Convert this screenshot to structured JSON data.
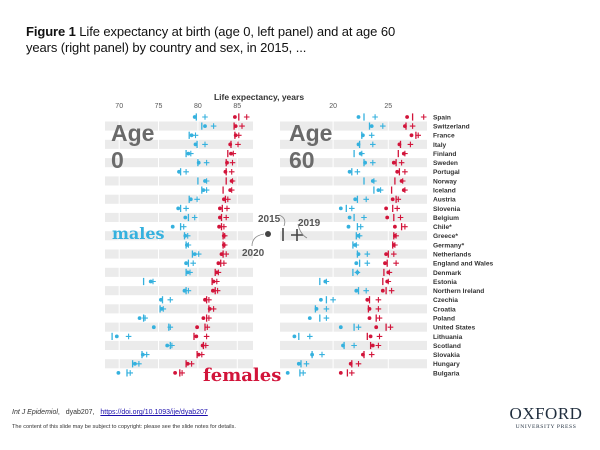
{
  "title": {
    "bold": "Figure 1",
    "text": " Life expectancy at birth (age 0, left panel) and at age 60 years (right panel) by country and sex, in 2015, ..."
  },
  "footer": {
    "journal": "Int J Epidemiol",
    "sep": ",",
    "article_id": "dyab207,",
    "doi_link": "https://doi.org/10.1093/ije/dyab207",
    "copyright": "The content of this slide may be subject to copyright: please see the slide notes for details."
  },
  "publisher": {
    "name": "OXFORD",
    "sub": "UNIVERSITY PRESS"
  },
  "colors": {
    "males": "#35b1de",
    "females": "#d2143a",
    "stripe": "#ebebeb",
    "label": "#333333",
    "age_label": "#6b6b6b"
  },
  "chart_data": {
    "type": "dot",
    "title": "Life expectancy at birth (age 0, left panel) and at age 60 years (right panel) by country and sex, in 2015, 2019 and 2020",
    "xlabel": "Life expectancy, years",
    "grid": true,
    "legend": {
      "y2015": "2015",
      "y2019": "2019",
      "y2020": "2020",
      "placement": "center",
      "marks": {
        "2015": "bar",
        "2019": "plus",
        "2020": "dot"
      }
    },
    "sex_labels": {
      "males": "males",
      "females": "females"
    },
    "countries": [
      "Spain",
      "Switzerland",
      "France",
      "Italy",
      "Finland",
      "Sweden",
      "Portugal",
      "Norway",
      "Iceland",
      "Austria",
      "Slovenia",
      "Belgium",
      "Chile*",
      "Greece*",
      "Germany*",
      "Netherlands",
      "England and Wales",
      "Denmark",
      "Estonia",
      "Northern Ireland",
      "Czechia",
      "Croatia",
      "Poland",
      "United States",
      "Lithuania",
      "Scotland",
      "Slovakia",
      "Hungary",
      "Bulgaria"
    ],
    "panels": [
      {
        "name": "Age 0",
        "label_line1": "Age",
        "label_line2": "0",
        "xticks": [
          70,
          75,
          80,
          85
        ],
        "xtick_labels": [
          "70",
          "75",
          "80",
          "85"
        ],
        "xlim": [
          68.2,
          87.0
        ],
        "males": {
          "y2015": [
            79.8,
            80.5,
            78.9,
            79.9,
            78.5,
            80.0,
            77.8,
            80.0,
            80.5,
            78.9,
            77.8,
            78.8,
            77.8,
            78.3,
            78.5,
            79.3,
            78.8,
            78.5,
            73.1,
            78.5,
            75.5,
            75.2,
            73.1,
            76.3,
            69.1,
            76.5,
            72.9,
            71.7,
            71.0
          ],
          "y2019": [
            80.9,
            82.0,
            79.7,
            80.9,
            79.1,
            81.1,
            78.5,
            81.1,
            81.1,
            79.9,
            78.5,
            79.6,
            78.2,
            78.7,
            78.8,
            80.1,
            79.4,
            79.0,
            74.3,
            78.8,
            76.5,
            75.6,
            73.3,
            76.5,
            71.2,
            76.7,
            73.5,
            72.5,
            71.4
          ],
          "y2020": [
            79.6,
            80.9,
            79.2,
            79.7,
            78.8,
            80.1,
            77.6,
            80.9,
            80.7,
            79.1,
            77.5,
            78.4,
            76.8,
            78.4,
            78.6,
            79.6,
            78.5,
            78.7,
            74.0,
            78.3,
            75.3,
            75.4,
            72.6,
            74.4,
            69.7,
            76.1,
            73.0,
            72.0,
            69.9
          ]
        },
        "females": {
          "y2015": [
            85.2,
            84.6,
            84.7,
            84.2,
            83.8,
            83.6,
            83.6,
            83.6,
            83.2,
            83.5,
            83.1,
            83.0,
            83.0,
            83.2,
            83.2,
            83.2,
            82.9,
            82.2,
            81.8,
            82.2,
            81.1,
            81.4,
            81.1,
            80.9,
            79.5,
            80.7,
            79.9,
            78.5,
            77.7
          ],
          "y2019": [
            86.2,
            85.6,
            85.2,
            85.1,
            84.5,
            84.4,
            84.3,
            84.4,
            84.3,
            83.8,
            83.7,
            83.6,
            83.3,
            83.4,
            83.4,
            83.6,
            83.3,
            82.6,
            82.4,
            82.5,
            81.4,
            82.0,
            81.4,
            81.2,
            81.1,
            81.0,
            80.5,
            79.2,
            78.0
          ],
          "y2020": [
            84.7,
            84.8,
            84.8,
            84.1,
            84.2,
            83.7,
            83.5,
            84.3,
            84.1,
            83.3,
            82.8,
            82.8,
            82.7,
            83.3,
            83.3,
            83.0,
            82.6,
            82.4,
            82.0,
            81.9,
            80.9,
            81.5,
            80.7,
            79.9,
            79.8,
            80.6,
            80.1,
            78.7,
            77.1
          ]
        }
      },
      {
        "name": "Age 60",
        "label_line1": "Age",
        "label_line2": "60",
        "xticks": [
          20,
          25
        ],
        "xtick_labels": [
          "20",
          "25"
        ],
        "xlim": [
          15.2,
          28.5
        ],
        "males": {
          "y2015": [
            22.8,
            23.3,
            22.6,
            22.4,
            21.9,
            22.8,
            21.7,
            22.8,
            23.7,
            22.2,
            21.2,
            21.9,
            22.2,
            22.1,
            21.8,
            22.2,
            22.4,
            21.8,
            18.8,
            22.3,
            19.4,
            18.4,
            18.8,
            21.9,
            16.9,
            21.0,
            18.1,
            17.1,
            17.0
          ],
          "y2019": [
            23.8,
            24.5,
            23.5,
            23.6,
            22.6,
            23.6,
            22.2,
            23.7,
            24.3,
            23.0,
            21.7,
            22.8,
            22.5,
            22.4,
            22.1,
            23.1,
            23.1,
            22.2,
            19.4,
            23.0,
            20.0,
            19.4,
            19.4,
            22.3,
            17.9,
            21.9,
            19.0,
            17.6,
            17.3
          ],
          "y2020": [
            22.3,
            23.5,
            22.7,
            22.3,
            22.5,
            22.9,
            21.5,
            23.6,
            24.1,
            22.0,
            20.7,
            21.5,
            21.4,
            22.3,
            22.0,
            22.3,
            22.1,
            22.2,
            19.3,
            22.1,
            18.9,
            18.5,
            17.9,
            20.7,
            16.5,
            20.9,
            18.1,
            16.9,
            15.9
          ]
        },
        "females": {
          "y2015": [
            27.2,
            26.6,
            27.5,
            26.1,
            25.9,
            25.7,
            26.0,
            25.6,
            25.3,
            25.7,
            25.4,
            25.5,
            26.2,
            25.5,
            25.4,
            25.0,
            24.9,
            24.6,
            24.5,
            24.8,
            23.3,
            23.2,
            23.9,
            24.8,
            23.1,
            23.4,
            22.8,
            21.7,
            21.3
          ],
          "y2019": [
            28.2,
            27.2,
            27.7,
            27.0,
            26.5,
            26.2,
            26.5,
            26.3,
            26.5,
            25.9,
            25.8,
            26.1,
            26.5,
            25.7,
            25.6,
            25.5,
            25.7,
            25.1,
            25.0,
            25.3,
            24.1,
            24.1,
            24.2,
            25.2,
            24.2,
            24.1,
            23.5,
            22.3,
            21.7
          ],
          "y2020": [
            26.7,
            26.5,
            27.1,
            26.0,
            26.4,
            25.5,
            25.8,
            26.2,
            26.4,
            25.4,
            24.8,
            24.9,
            25.6,
            25.6,
            25.5,
            24.8,
            24.7,
            25.0,
            24.9,
            24.5,
            23.1,
            23.3,
            23.3,
            23.9,
            23.4,
            23.6,
            22.7,
            21.6,
            20.7
          ]
        }
      }
    ]
  }
}
